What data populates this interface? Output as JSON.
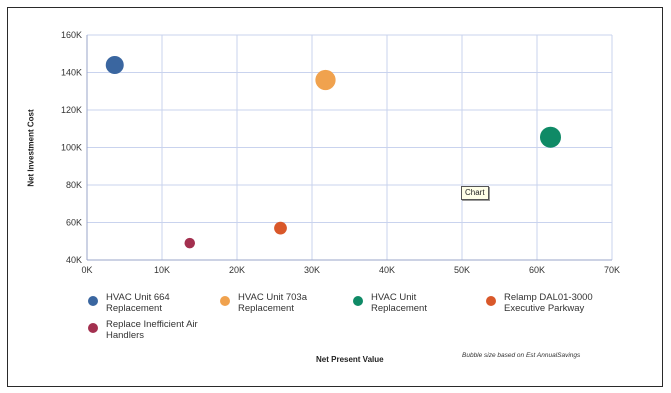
{
  "chart_data": {
    "type": "scatter",
    "title": "",
    "xlabel": "Net Present Value",
    "ylabel": "Net Investment Cost",
    "xlim": [
      0,
      70000
    ],
    "ylim": [
      40000,
      160000
    ],
    "x_ticks": [
      0,
      10000,
      20000,
      30000,
      40000,
      50000,
      60000,
      70000
    ],
    "x_tick_labels": [
      "0K",
      "10K",
      "20K",
      "30K",
      "40K",
      "50K",
      "60K",
      "70K"
    ],
    "y_ticks": [
      40000,
      60000,
      80000,
      100000,
      120000,
      140000,
      160000
    ],
    "y_tick_labels": [
      "40K",
      "60K",
      "80K",
      "100K",
      "120K",
      "140K",
      "160K"
    ],
    "grid": true,
    "legend_position": "bottom",
    "note": "Bubble size based on Est AnnualSavings",
    "tooltip": "Chart",
    "series": [
      {
        "name": "HVAC Unit 664\nReplacement",
        "color": "#3a66a0",
        "x": 3700,
        "y": 144000,
        "size": 0.8
      },
      {
        "name": "HVAC Unit 703a\nReplacement",
        "color": "#f0a24e",
        "x": 31800,
        "y": 136000,
        "size": 0.95
      },
      {
        "name": "HVAC Unit\nReplacement",
        "color": "#0f8a66",
        "x": 61800,
        "y": 105500,
        "size": 1.0
      },
      {
        "name": "Relamp DAL01-3000\nExecutive Parkway",
        "color": "#d9582a",
        "x": 25800,
        "y": 57000,
        "size": 0.45
      },
      {
        "name": "Replace Inefficient Air\nHandlers",
        "color": "#a3304f",
        "x": 13700,
        "y": 49000,
        "size": 0.3
      }
    ]
  }
}
